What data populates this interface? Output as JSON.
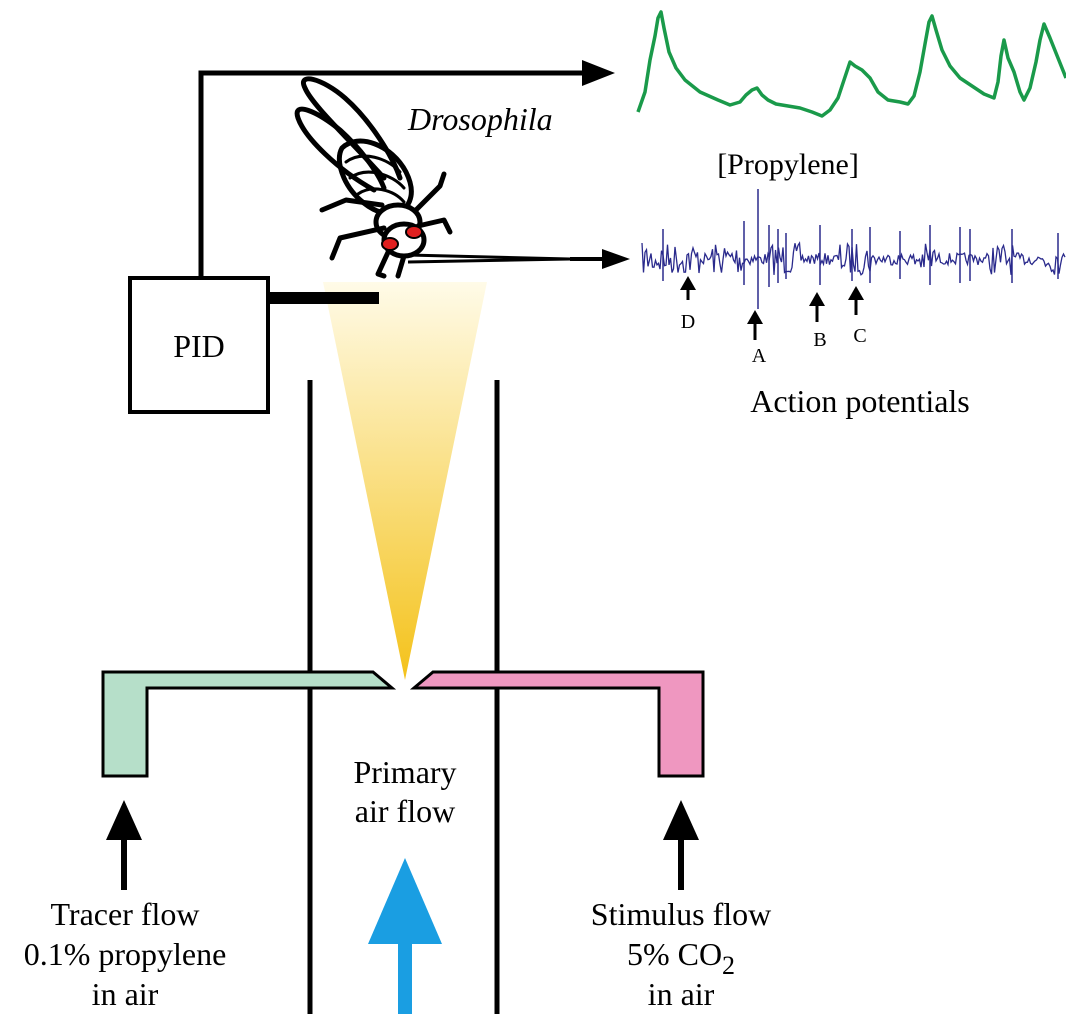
{
  "labels": {
    "pid": "PID",
    "drosophila": "Drosophila",
    "propylene_trace": "[Propylene]",
    "action_potentials": "Action potentials",
    "spike_a": "A",
    "spike_b": "B",
    "spike_c": "C",
    "spike_d": "D",
    "primary_line1": "Primary",
    "primary_line2": "air flow",
    "tracer_line1": "Tracer flow",
    "tracer_line2": "0.1% propylene",
    "tracer_line3": "in air",
    "stimulus_line1": "Stimulus flow",
    "stimulus_line2_prefix": "5% CO",
    "stimulus_line2_subscript": "2",
    "stimulus_line3": "in air"
  },
  "colors": {
    "propylene_trace": "#1a9a4a",
    "action_potential_trace": "#2a2a8c",
    "odor_cone_top": "#fffbe8",
    "odor_cone_bottom": "#f4c21a",
    "tracer_inlet": "#b6dfc9",
    "stimulus_inlet": "#ef97c0",
    "primary_air_arrow": "#1a9ee2",
    "fly_eye": "#e02020"
  }
}
